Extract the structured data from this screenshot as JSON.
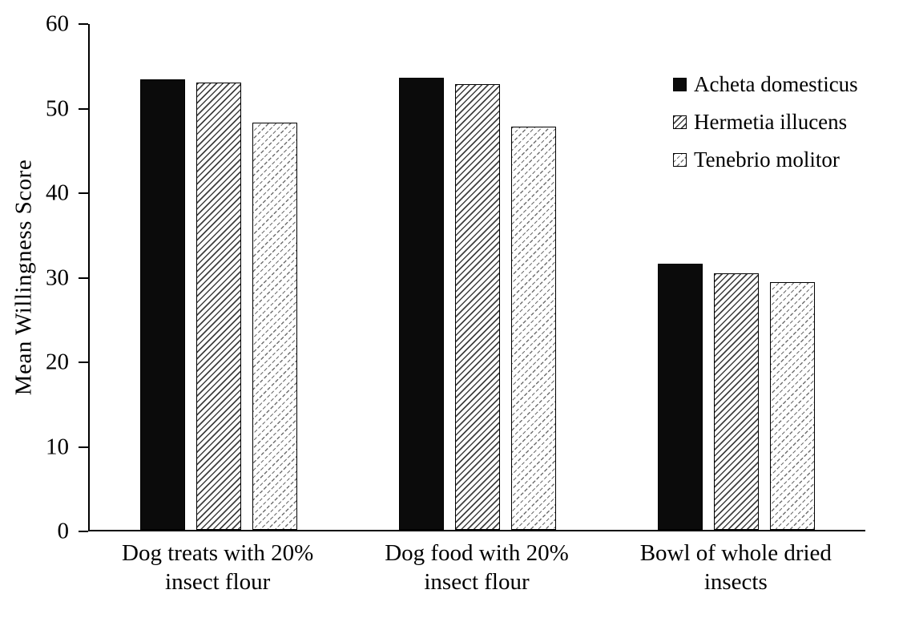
{
  "chart_data": {
    "type": "bar",
    "title": "",
    "ylabel": "Mean Willingness Score",
    "xlabel": "",
    "ylim": [
      0,
      60
    ],
    "yticks": [
      0,
      10,
      20,
      30,
      40,
      50,
      60
    ],
    "grid": false,
    "legend_position": "upper right",
    "categories": [
      "Dog treats with 20% insect flour",
      "Dog food with 20% insect flour",
      "Bowl of whole dried insects"
    ],
    "categories_lines": [
      [
        "Dog treats with 20%",
        "insect flour"
      ],
      [
        "Dog food with 20%",
        "insect flour"
      ],
      [
        "Bowl of whole dried",
        "insects"
      ]
    ],
    "series": [
      {
        "name": "Acheta domesticus",
        "pattern": "solid",
        "values": [
          53.4,
          53.6,
          31.6
        ]
      },
      {
        "name": "Hermetia illucens",
        "pattern": "hatch-dense",
        "values": [
          53.1,
          52.9,
          30.4
        ]
      },
      {
        "name": "Tenebrio molitor",
        "pattern": "hatch-light",
        "values": [
          48.3,
          47.8,
          29.4
        ]
      }
    ],
    "colors": {
      "axis": "#000000",
      "bar_solid": "#0b0b0b",
      "hatch_line": "#3f3f3f",
      "bar_border": "#000000",
      "background": "#ffffff",
      "text": "#000000"
    }
  }
}
